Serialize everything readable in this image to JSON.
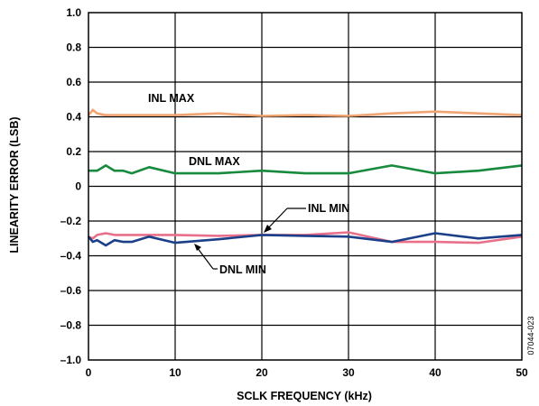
{
  "chart_data": {
    "type": "line",
    "title": "",
    "xlabel": "SCLK FREQUENCY (kHz)",
    "ylabel": "LINEARITY ERROR (LSB)",
    "xlim": [
      0,
      50
    ],
    "ylim": [
      -1.0,
      1.0
    ],
    "grid": true,
    "x_ticks": [
      "0",
      "10",
      "20",
      "30",
      "40",
      "50"
    ],
    "y_ticks": [
      "1.0",
      "0.8",
      "0.6",
      "0.4",
      "0.2",
      "0",
      "–0.2",
      "–0.4",
      "–0.6",
      "–0.8",
      "–1.0"
    ],
    "figure_id": "07044-023",
    "series": [
      {
        "name": "INL MAX",
        "color": "#f0a472",
        "points": [
          [
            0,
            0.41
          ],
          [
            0.5,
            0.44
          ],
          [
            1,
            0.42
          ],
          [
            2,
            0.41
          ],
          [
            5,
            0.41
          ],
          [
            10,
            0.41
          ],
          [
            15,
            0.42
          ],
          [
            20,
            0.405
          ],
          [
            25,
            0.41
          ],
          [
            30,
            0.405
          ],
          [
            35,
            0.42
          ],
          [
            40,
            0.43
          ],
          [
            45,
            0.42
          ],
          [
            50,
            0.41
          ]
        ]
      },
      {
        "name": "DNL MAX",
        "color": "#178a3e",
        "points": [
          [
            0,
            0.09
          ],
          [
            1,
            0.09
          ],
          [
            2,
            0.12
          ],
          [
            3,
            0.09
          ],
          [
            4,
            0.09
          ],
          [
            5,
            0.075
          ],
          [
            7,
            0.11
          ],
          [
            10,
            0.075
          ],
          [
            15,
            0.075
          ],
          [
            20,
            0.09
          ],
          [
            25,
            0.075
          ],
          [
            30,
            0.075
          ],
          [
            35,
            0.12
          ],
          [
            40,
            0.075
          ],
          [
            45,
            0.09
          ],
          [
            50,
            0.12
          ]
        ]
      },
      {
        "name": "INL MIN",
        "color": "#e8708a",
        "points": [
          [
            0,
            -0.29
          ],
          [
            0.5,
            -0.3
          ],
          [
            1,
            -0.28
          ],
          [
            2,
            -0.27
          ],
          [
            3,
            -0.28
          ],
          [
            5,
            -0.28
          ],
          [
            7,
            -0.28
          ],
          [
            10,
            -0.28
          ],
          [
            15,
            -0.285
          ],
          [
            20,
            -0.28
          ],
          [
            25,
            -0.28
          ],
          [
            30,
            -0.265
          ],
          [
            35,
            -0.32
          ],
          [
            40,
            -0.32
          ],
          [
            45,
            -0.325
          ],
          [
            50,
            -0.29
          ]
        ]
      },
      {
        "name": "DNL MIN",
        "color": "#1c3f8a",
        "points": [
          [
            0,
            -0.29
          ],
          [
            0.5,
            -0.32
          ],
          [
            1,
            -0.31
          ],
          [
            2,
            -0.34
          ],
          [
            3,
            -0.31
          ],
          [
            4,
            -0.32
          ],
          [
            5,
            -0.32
          ],
          [
            7,
            -0.29
          ],
          [
            10,
            -0.325
          ],
          [
            15,
            -0.305
          ],
          [
            20,
            -0.28
          ],
          [
            25,
            -0.285
          ],
          [
            30,
            -0.29
          ],
          [
            35,
            -0.32
          ],
          [
            40,
            -0.27
          ],
          [
            45,
            -0.3
          ],
          [
            50,
            -0.28
          ]
        ]
      }
    ],
    "annotations": [
      "INL MAX",
      "DNL MAX",
      "INL MIN",
      "DNL MIN"
    ]
  }
}
